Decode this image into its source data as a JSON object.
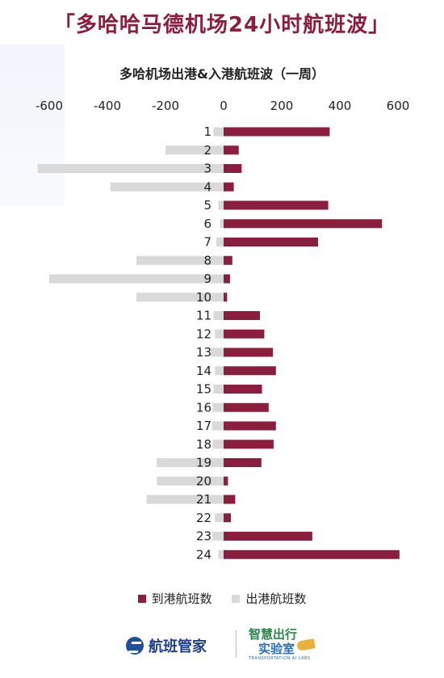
{
  "page": {
    "title": "「多哈哈马德机场24小时航班波」"
  },
  "chart_data": {
    "type": "bar",
    "orientation": "horizontal",
    "title": "多哈机场出港&入港航班波（一周）",
    "categories": [
      "1",
      "2",
      "3",
      "4",
      "5",
      "6",
      "7",
      "8",
      "9",
      "10",
      "11",
      "12",
      "13",
      "14",
      "15",
      "16",
      "17",
      "18",
      "19",
      "20",
      "21",
      "22",
      "23",
      "24"
    ],
    "series": [
      {
        "name": "到港航班数",
        "color": "#8b1e3f",
        "values": [
          365,
          52,
          62,
          35,
          360,
          545,
          325,
          30,
          22,
          12,
          125,
          140,
          170,
          180,
          132,
          155,
          180,
          172,
          130,
          15,
          40,
          25,
          305,
          605
        ]
      },
      {
        "name": "出港航班数",
        "color": "#d9d9d9",
        "values": [
          -35,
          -200,
          -640,
          -390,
          -18,
          -12,
          -25,
          -300,
          -600,
          -300,
          -35,
          -30,
          -45,
          -30,
          -35,
          -38,
          -40,
          -38,
          -230,
          -230,
          -265,
          -30,
          -40,
          -18
        ]
      }
    ],
    "xlim": [
      -650,
      650
    ],
    "xticks": [
      -600,
      -400,
      -200,
      0,
      200,
      400,
      600
    ],
    "xtick_labels": [
      "-600",
      "-400",
      "-200",
      "0",
      "200",
      "400",
      "600"
    ],
    "grid": false,
    "legend": "bottom"
  },
  "footer": {
    "brand_left": "航班管家",
    "brand_right_line1": "智慧出行",
    "brand_right_line2": "实验室",
    "brand_right_line3": "TRANSPORTATION AI LABS"
  }
}
